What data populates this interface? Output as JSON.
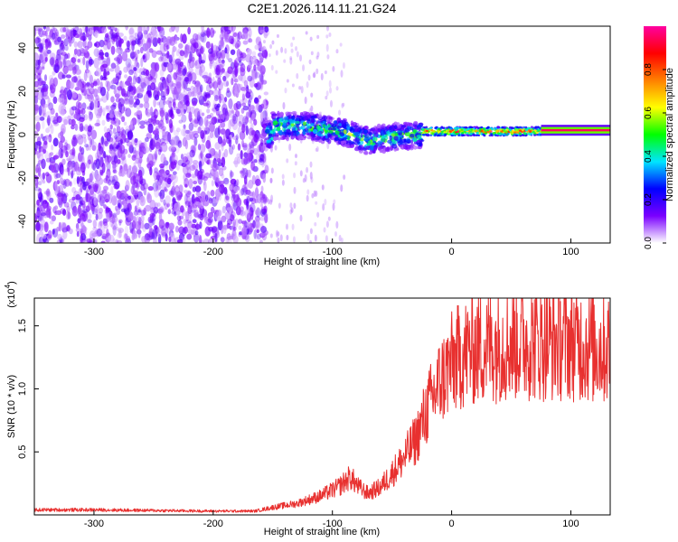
{
  "chart_data": [
    {
      "type": "heatmap",
      "title": "C2E1.2026.114.11.21.G24",
      "xlabel": "Height of straight line (km)",
      "ylabel": "Frequency (Hz)",
      "xlim": [
        -350,
        133
      ],
      "ylim": [
        -50,
        50
      ],
      "xticks": [
        -300,
        -200,
        -100,
        0,
        100
      ],
      "yticks": [
        -40,
        -20,
        0,
        20,
        40
      ],
      "colorbar": {
        "label": "Normalized spectral amplitude",
        "range": [
          0,
          1
        ],
        "ticks": [
          "0.0",
          "0.2",
          "0.4",
          "0.6",
          "0.8"
        ],
        "tick_values": [
          0.0,
          0.2,
          0.4,
          0.6,
          0.8
        ],
        "colormap": [
          "#ffffff",
          "#7a00ff",
          "#0000ff",
          "#00e5ff",
          "#00ff00",
          "#ffff00",
          "#ff8000",
          "#ff0000",
          "#ff00a0"
        ]
      },
      "regions": [
        {
          "name": "noise",
          "x_range": [
            -350,
            -155
          ],
          "freq_range": [
            -50,
            50
          ],
          "amplitude": 0.12
        },
        {
          "name": "transition",
          "x_range": [
            -155,
            -25
          ],
          "freq_center": [
            [
              -150,
              4
            ],
            [
              -120,
              4
            ],
            [
              -90,
              1
            ],
            [
              -70,
              -3
            ],
            [
              -50,
              -1
            ],
            [
              -25,
              0
            ]
          ],
          "freq_halfwidth": 6,
          "amplitude": 0.45
        },
        {
          "name": "signal",
          "x_range": [
            -25,
            75
          ],
          "freq_center": 1.5,
          "freq_halfwidth": 2,
          "amplitude": 0.6
        },
        {
          "name": "strong-signal",
          "x_range": [
            75,
            133
          ],
          "freq_center": 2,
          "freq_halfwidth": 1,
          "amplitude": 0.95
        }
      ]
    },
    {
      "type": "line",
      "xlabel": "Height of straight line (km)",
      "ylabel": "SNR (10 * v/v)",
      "y_scale_label": "(x10",
      "y_scale_exp": "4",
      "xlim": [
        -350,
        133
      ],
      "ylim": [
        0,
        1.72
      ],
      "xticks": [
        -300,
        -200,
        -100,
        0,
        100
      ],
      "yticks": [
        "0.5",
        "1.0",
        "1.5"
      ],
      "ytick_values": [
        0.5,
        1.0,
        1.5
      ],
      "color": "#e8302f",
      "envelope": [
        [
          -350,
          0.04
        ],
        [
          -300,
          0.04
        ],
        [
          -250,
          0.035
        ],
        [
          -200,
          0.03
        ],
        [
          -165,
          0.03
        ],
        [
          -150,
          0.06
        ],
        [
          -130,
          0.09
        ],
        [
          -110,
          0.15
        ],
        [
          -95,
          0.22
        ],
        [
          -85,
          0.3
        ],
        [
          -78,
          0.22
        ],
        [
          -70,
          0.17
        ],
        [
          -60,
          0.22
        ],
        [
          -50,
          0.33
        ],
        [
          -40,
          0.45
        ],
        [
          -30,
          0.6
        ],
        [
          -20,
          0.85
        ],
        [
          -10,
          1.05
        ],
        [
          0,
          1.2
        ],
        [
          10,
          1.28
        ],
        [
          20,
          1.32
        ],
        [
          40,
          1.36
        ],
        [
          60,
          1.38
        ],
        [
          80,
          1.37
        ],
        [
          100,
          1.38
        ],
        [
          120,
          1.33
        ],
        [
          133,
          1.32
        ]
      ],
      "noise_fraction": 0.35,
      "points": 1400
    }
  ]
}
